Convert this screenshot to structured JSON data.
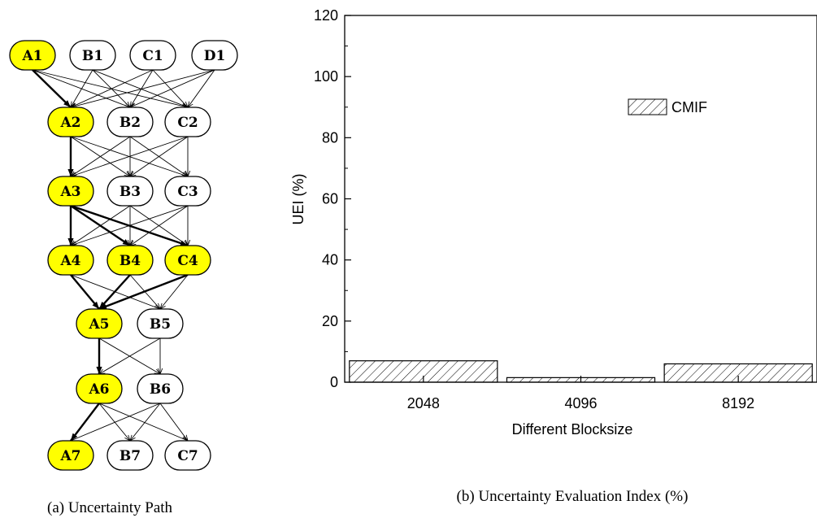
{
  "left_panel": {
    "caption": "(a) Uncertainty Path",
    "highlight_color": "#ffff00",
    "nodes": [
      {
        "id": "A1",
        "highlight": true
      },
      {
        "id": "B1",
        "highlight": false
      },
      {
        "id": "C1",
        "highlight": false
      },
      {
        "id": "D1",
        "highlight": false
      },
      {
        "id": "A2",
        "highlight": true
      },
      {
        "id": "B2",
        "highlight": false
      },
      {
        "id": "C2",
        "highlight": false
      },
      {
        "id": "A3",
        "highlight": true
      },
      {
        "id": "B3",
        "highlight": false
      },
      {
        "id": "C3",
        "highlight": false
      },
      {
        "id": "A4",
        "highlight": true
      },
      {
        "id": "B4",
        "highlight": true
      },
      {
        "id": "C4",
        "highlight": true
      },
      {
        "id": "A5",
        "highlight": true
      },
      {
        "id": "B5",
        "highlight": false
      },
      {
        "id": "A6",
        "highlight": true
      },
      {
        "id": "B6",
        "highlight": false
      },
      {
        "id": "A7",
        "highlight": true
      },
      {
        "id": "B7",
        "highlight": false
      },
      {
        "id": "C7",
        "highlight": false
      }
    ],
    "edges": [
      [
        "A1",
        "A2",
        1
      ],
      [
        "A1",
        "B2",
        0
      ],
      [
        "A1",
        "C2",
        0
      ],
      [
        "B1",
        "A2",
        0
      ],
      [
        "B1",
        "B2",
        0
      ],
      [
        "B1",
        "C2",
        0
      ],
      [
        "C1",
        "A2",
        0
      ],
      [
        "C1",
        "B2",
        0
      ],
      [
        "C1",
        "C2",
        0
      ],
      [
        "D1",
        "A2",
        0
      ],
      [
        "D1",
        "B2",
        0
      ],
      [
        "D1",
        "C2",
        0
      ],
      [
        "A2",
        "A3",
        1
      ],
      [
        "A2",
        "B3",
        0
      ],
      [
        "A2",
        "C3",
        0
      ],
      [
        "B2",
        "A3",
        0
      ],
      [
        "B2",
        "B3",
        0
      ],
      [
        "B2",
        "C3",
        0
      ],
      [
        "C2",
        "A3",
        0
      ],
      [
        "C2",
        "B3",
        0
      ],
      [
        "C2",
        "C3",
        0
      ],
      [
        "A3",
        "A4",
        1
      ],
      [
        "A3",
        "B4",
        1
      ],
      [
        "A3",
        "C4",
        1
      ],
      [
        "B3",
        "A4",
        0
      ],
      [
        "B3",
        "B4",
        0
      ],
      [
        "B3",
        "C4",
        0
      ],
      [
        "C3",
        "A4",
        0
      ],
      [
        "C3",
        "B4",
        0
      ],
      [
        "C3",
        "C4",
        0
      ],
      [
        "A4",
        "A5",
        1
      ],
      [
        "A4",
        "B5",
        0
      ],
      [
        "B4",
        "A5",
        1
      ],
      [
        "B4",
        "B5",
        0
      ],
      [
        "C4",
        "A5",
        1
      ],
      [
        "C4",
        "B5",
        0
      ],
      [
        "A5",
        "A6",
        1
      ],
      [
        "A5",
        "B6",
        0
      ],
      [
        "B5",
        "A6",
        0
      ],
      [
        "B5",
        "B6",
        0
      ],
      [
        "A6",
        "A7",
        1
      ],
      [
        "A6",
        "B7",
        0
      ],
      [
        "A6",
        "C7",
        0
      ],
      [
        "B6",
        "A7",
        0
      ],
      [
        "B6",
        "B7",
        0
      ],
      [
        "B6",
        "C7",
        0
      ]
    ]
  },
  "chart_data": {
    "type": "bar",
    "title": "",
    "caption": "(b) Uncertainty Evaluation Index (%)",
    "xlabel": "Different Blocksize",
    "ylabel": "UEI (%)",
    "categories": [
      "2048",
      "4096",
      "8192"
    ],
    "series": [
      {
        "name": "CMIF",
        "values": [
          7,
          1.5,
          6
        ],
        "pattern": "diagonal-hatch"
      }
    ],
    "ylim": [
      0,
      120
    ],
    "yticks": [
      "0",
      "20",
      "40",
      "60",
      "80",
      "100",
      "120"
    ],
    "legend": "upper right, inside plot",
    "grid": false
  }
}
